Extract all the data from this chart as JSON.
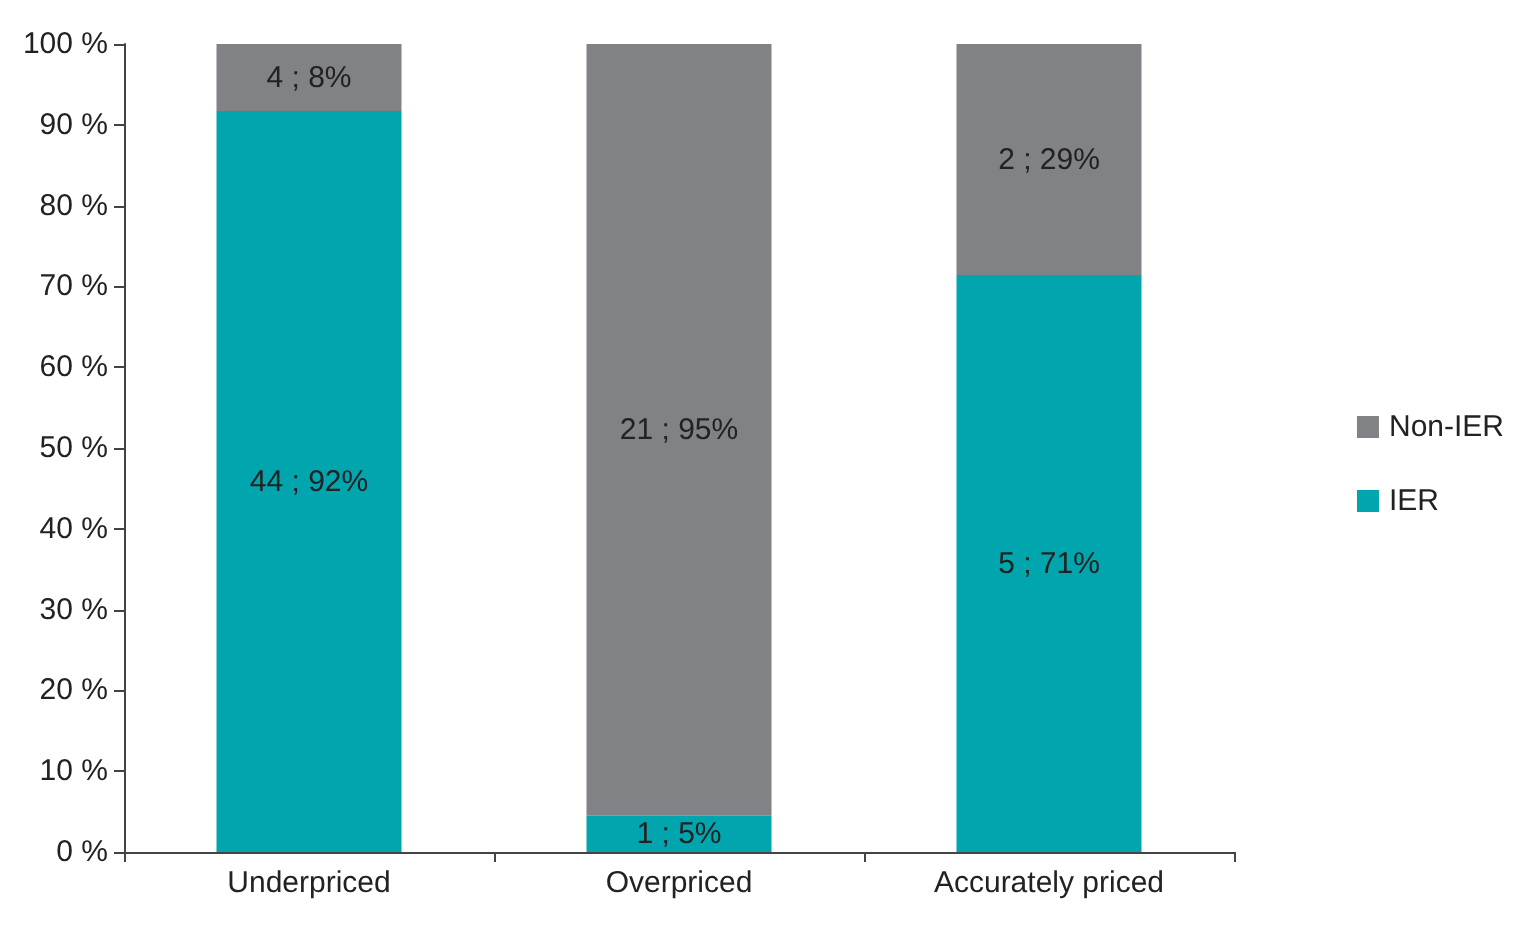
{
  "chart_data": {
    "type": "bar",
    "stacked": true,
    "categories": [
      "Underpriced",
      "Overpriced",
      "Accurately priced"
    ],
    "series": [
      {
        "name": "IER",
        "color": "#00a5ad",
        "values": [
          91.7,
          4.5,
          71.4
        ],
        "value_labels": [
          "44 ; 92%",
          "1 ; 5%",
          "5 ; 71%"
        ]
      },
      {
        "name": "Non-IER",
        "color": "#808285",
        "values": [
          8.3,
          95.5,
          28.6
        ],
        "value_labels": [
          "4 ; 8%",
          "21 ; 95%",
          "2 ; 29%"
        ]
      }
    ],
    "ylim": [
      0,
      100
    ],
    "yticks": [
      {
        "value": 0,
        "label": "0 %"
      },
      {
        "value": 10,
        "label": "10 %"
      },
      {
        "value": 20,
        "label": "20 %"
      },
      {
        "value": 30,
        "label": "30 %"
      },
      {
        "value": 40,
        "label": "40 %"
      },
      {
        "value": 50,
        "label": "50 %"
      },
      {
        "value": 60,
        "label": "60 %"
      },
      {
        "value": 70,
        "label": "70 %"
      },
      {
        "value": 80,
        "label": "80 %"
      },
      {
        "value": 90,
        "label": "90 %"
      },
      {
        "value": 100,
        "label": "100 %"
      }
    ],
    "grid": false,
    "legend": "right"
  }
}
